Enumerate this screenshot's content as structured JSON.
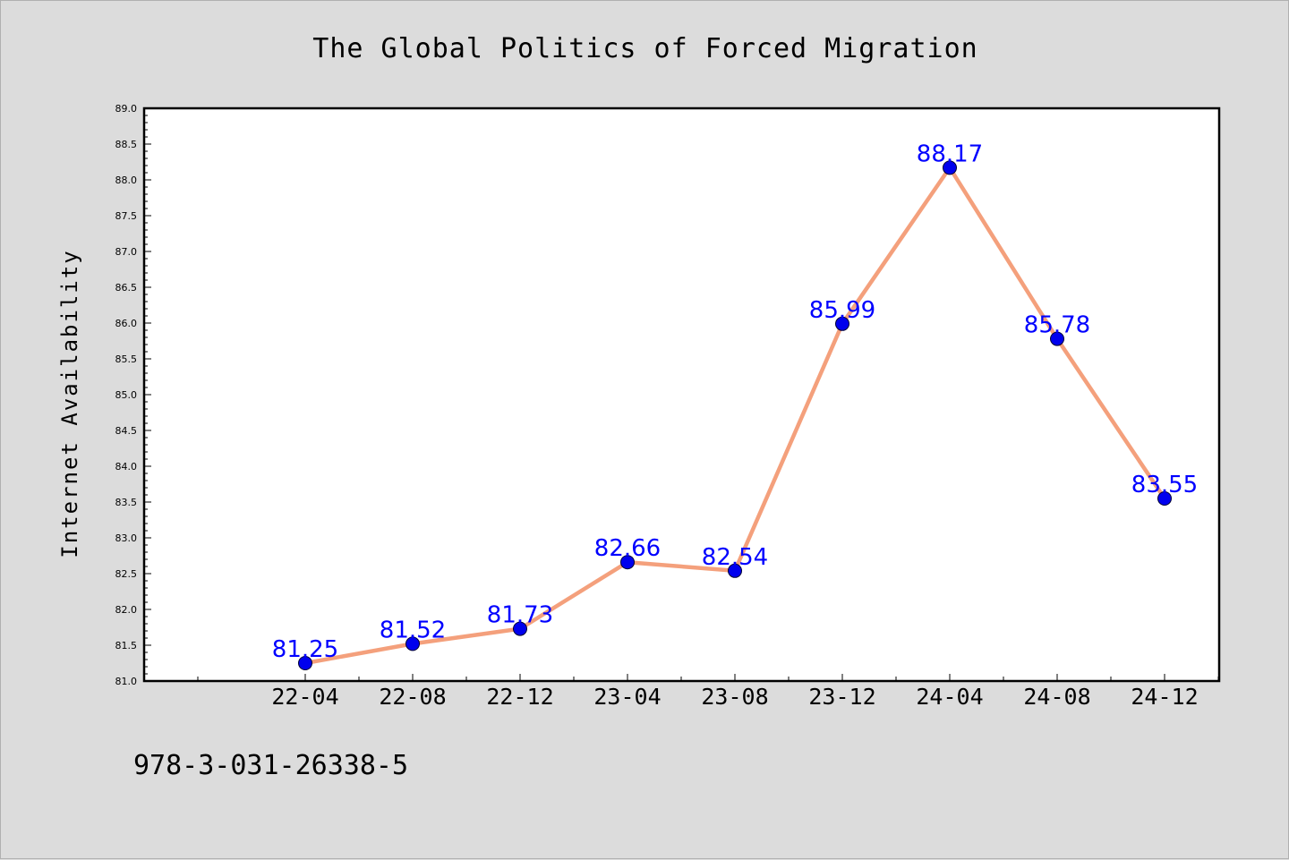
{
  "chart_data": {
    "type": "line",
    "title": "The Global Politics of Forced Migration",
    "xlabel": "",
    "ylabel": "Internet Availability",
    "categories": [
      "22-04",
      "22-08",
      "22-12",
      "23-04",
      "23-08",
      "23-12",
      "24-04",
      "24-08",
      "24-12"
    ],
    "series": [
      {
        "values": [
          81.25,
          81.52,
          81.73,
          82.66,
          82.54,
          85.99,
          88.17,
          85.78,
          83.55
        ]
      }
    ],
    "data_labels": [
      "81.25",
      "81.52",
      "81.73",
      "82.66",
      "82.54",
      "85.99",
      "88.17",
      "85.78",
      "83.55"
    ],
    "ylim": [
      81.0,
      89.0
    ],
    "yticks": [
      "81.0",
      "81.5",
      "82.0",
      "82.5",
      "83.0",
      "83.5",
      "84.0",
      "84.5",
      "85.0",
      "85.5",
      "86.0",
      "86.5",
      "87.0",
      "87.5",
      "88.0",
      "88.5",
      "89.0"
    ],
    "grid": false,
    "line_color": "#f4a07c",
    "marker_color": "#0000ee",
    "label_color": "#0000ff"
  },
  "footer": {
    "text": "978-3-031-26338-5"
  }
}
